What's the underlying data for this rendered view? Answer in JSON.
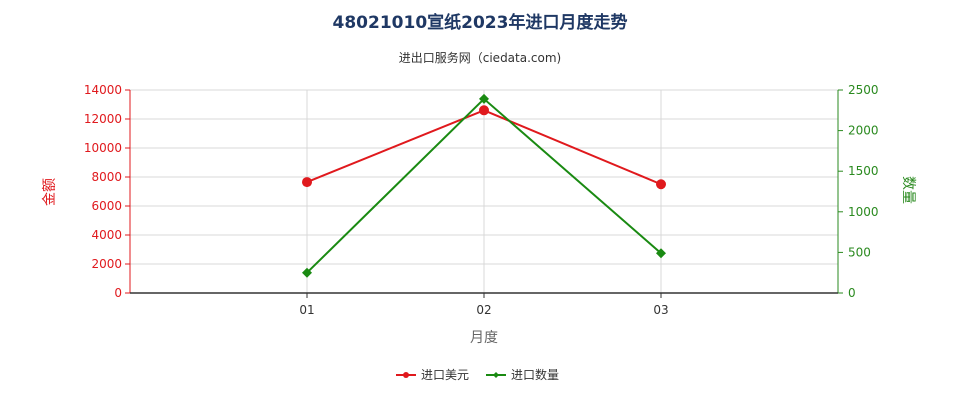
{
  "chart_data": {
    "type": "line",
    "title": "48021010宣纸2023年进口月度走势",
    "subtitle": "进出口服务网（ciedata.com)",
    "xlabel": "月度",
    "ylabel_left": "金额",
    "ylabel_right": "数量",
    "categories": [
      "01",
      "02",
      "03"
    ],
    "y_left": {
      "min": 0,
      "max": 14000,
      "ticks": [
        "0",
        "2000",
        "4000",
        "6000",
        "8000",
        "10000",
        "12000",
        "14000"
      ]
    },
    "y_right": {
      "min": 0,
      "max": 2500,
      "ticks": [
        "0",
        "500",
        "1000",
        "1500",
        "2000",
        "2500"
      ]
    },
    "grid": true,
    "legend_position": "bottom",
    "series": [
      {
        "name": "进口美元",
        "axis": "left",
        "color": "#e0191d",
        "marker": "circle",
        "values": [
          7650,
          12600,
          7500
        ]
      },
      {
        "name": "进口数量",
        "axis": "right",
        "color": "#1a8a12",
        "marker": "diamond",
        "values": [
          250,
          2390,
          490
        ]
      }
    ]
  }
}
